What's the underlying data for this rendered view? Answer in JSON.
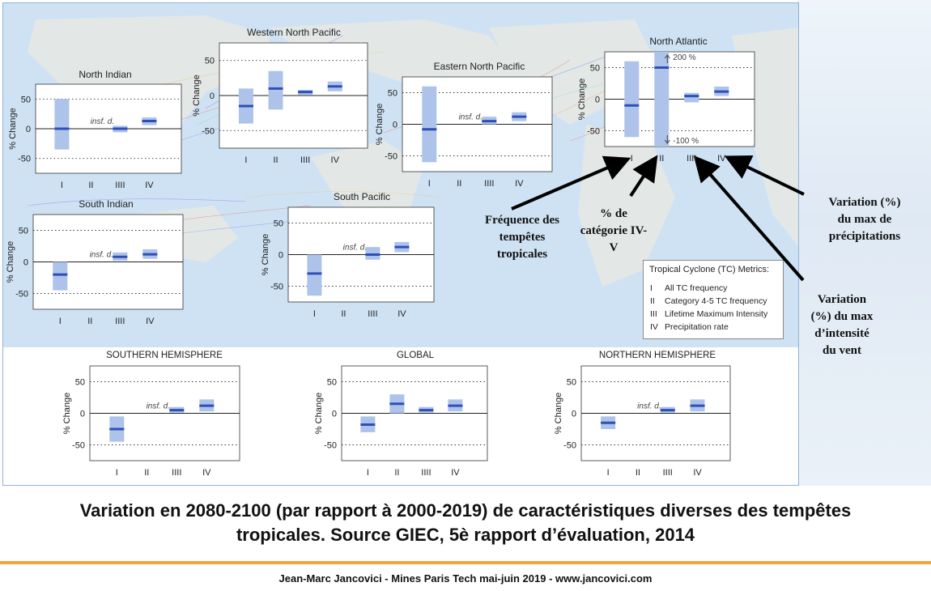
{
  "chart_data": [
    {
      "type": "bar",
      "title": "North Indian",
      "ylabel": "% Change",
      "categories": [
        "I",
        "II",
        "IIII",
        "IV"
      ],
      "ylim": [
        -75,
        75
      ],
      "ticks": [
        50,
        0,
        -50
      ],
      "values": [
        0,
        null,
        0,
        13
      ],
      "ranges": [
        [
          -35,
          50
        ],
        null,
        [
          -6,
          5
        ],
        [
          6,
          19
        ]
      ],
      "annotation": "insf. d."
    },
    {
      "type": "bar",
      "title": "Western North Pacific",
      "ylabel": "% Change",
      "categories": [
        "I",
        "II",
        "IIII",
        "IV"
      ],
      "ylim": [
        -75,
        75
      ],
      "ticks": [
        50,
        0,
        -50
      ],
      "values": [
        -15,
        10,
        5,
        13
      ],
      "ranges": [
        [
          -40,
          10
        ],
        [
          -20,
          35
        ],
        [
          1,
          8
        ],
        [
          6,
          20
        ]
      ]
    },
    {
      "type": "bar",
      "title": "Eastern North Pacific",
      "ylabel": "% Change",
      "categories": [
        "I",
        "II",
        "IIII",
        "IV"
      ],
      "ylim": [
        -75,
        75
      ],
      "ticks": [
        50,
        0,
        -50
      ],
      "values": [
        -8,
        null,
        5,
        12
      ],
      "ranges": [
        [
          -60,
          60
        ],
        null,
        [
          0,
          12
        ],
        [
          5,
          19
        ]
      ],
      "annotation": "insf. d."
    },
    {
      "type": "bar",
      "title": "North Atlantic",
      "ylabel": "% Change",
      "categories": [
        "I",
        "II",
        "IIII",
        "IV"
      ],
      "ylim": [
        -75,
        75
      ],
      "ticks": [
        50,
        0,
        -50
      ],
      "values": [
        -10,
        50,
        5,
        12
      ],
      "ranges": [
        [
          -60,
          60
        ],
        [
          -75,
          75
        ],
        [
          -5,
          10
        ],
        [
          5,
          20
        ]
      ],
      "annotation_top": "200 %",
      "annotation_bottom": "-100 %"
    },
    {
      "type": "bar",
      "title": "South Indian",
      "ylabel": "% Change",
      "categories": [
        "I",
        "II",
        "IIII",
        "IV"
      ],
      "ylim": [
        -75,
        75
      ],
      "ticks": [
        50,
        0,
        -50
      ],
      "values": [
        -20,
        null,
        8,
        12
      ],
      "ranges": [
        [
          -45,
          0
        ],
        null,
        [
          2,
          15
        ],
        [
          5,
          20
        ]
      ],
      "annotation": "insf. d."
    },
    {
      "type": "bar",
      "title": "South Pacific",
      "ylabel": "% Change",
      "categories": [
        "I",
        "II",
        "IIII",
        "IV"
      ],
      "ylim": [
        -75,
        75
      ],
      "ticks": [
        50,
        0,
        -50
      ],
      "values": [
        -30,
        null,
        0,
        12
      ],
      "ranges": [
        [
          -65,
          0
        ],
        null,
        [
          -8,
          12
        ],
        [
          4,
          20
        ]
      ],
      "annotation": "insf. d."
    },
    {
      "type": "bar",
      "title": "Southern Hemisphere",
      "ylabel": "% Change",
      "categories": [
        "I",
        "II",
        "IIII",
        "IV"
      ],
      "ylim": [
        -75,
        75
      ],
      "ticks": [
        50,
        0,
        -50
      ],
      "values": [
        -25,
        null,
        5,
        12
      ],
      "ranges": [
        [
          -45,
          -5
        ],
        null,
        [
          1,
          10
        ],
        [
          3,
          22
        ]
      ],
      "annotation": "insf. d."
    },
    {
      "type": "bar",
      "title": "Global",
      "ylabel": "% Change",
      "categories": [
        "I",
        "II",
        "IIII",
        "IV"
      ],
      "ylim": [
        -75,
        75
      ],
      "ticks": [
        50,
        0,
        -50
      ],
      "values": [
        -18,
        15,
        5,
        12
      ],
      "ranges": [
        [
          -30,
          -5
        ],
        [
          0,
          30
        ],
        [
          1,
          10
        ],
        [
          3,
          22
        ]
      ]
    },
    {
      "type": "bar",
      "title": "Northern Hemisphere",
      "ylabel": "% Change",
      "categories": [
        "I",
        "II",
        "IIII",
        "IV"
      ],
      "ylim": [
        -75,
        75
      ],
      "ticks": [
        50,
        0,
        -50
      ],
      "values": [
        -15,
        null,
        5,
        12
      ],
      "ranges": [
        [
          -25,
          -5
        ],
        null,
        [
          1,
          10
        ],
        [
          3,
          22
        ]
      ],
      "annotation": "insf. d."
    }
  ],
  "legend": {
    "title": "Tropical Cyclone (TC) Metrics:",
    "items": [
      {
        "num": "I",
        "label": "All TC frequency"
      },
      {
        "num": "II",
        "label": "Category 4-5 TC frequency"
      },
      {
        "num": "III",
        "label": "Lifetime Maximum Intensity"
      },
      {
        "num": "IV",
        "label": "Precipitation rate"
      }
    ]
  },
  "annotations": {
    "freq": [
      "Fréquence des",
      "tempêtes",
      "tropicales"
    ],
    "cat": [
      "% de",
      "catégorie IV-",
      "V"
    ],
    "precip": [
      "Variation (%)",
      "du max de",
      "précipitations"
    ],
    "wind": [
      "Variation",
      "(%) du max",
      "d’intensité",
      "du vent"
    ]
  },
  "caption": {
    "line1": "Variation en 2080-2100 (par rapport à 2000-2019) de caractéristiques diverses des tempêtes",
    "line2": "tropicales. Source GIEC, 5è rapport d’évaluation, 2014"
  },
  "footer": "Jean-Marc Jancovici - Mines Paris Tech mai-juin 2019 - www.jancovici.com",
  "colors": {
    "bar_fill": "#aec3ea",
    "median": "#2f4fb8",
    "panel_bg": "#ffffff",
    "map_land": "#e3e7e6",
    "map_ocean": "#cfe2f3",
    "arrow": "#000000",
    "accent_rule": "#f0a640"
  }
}
